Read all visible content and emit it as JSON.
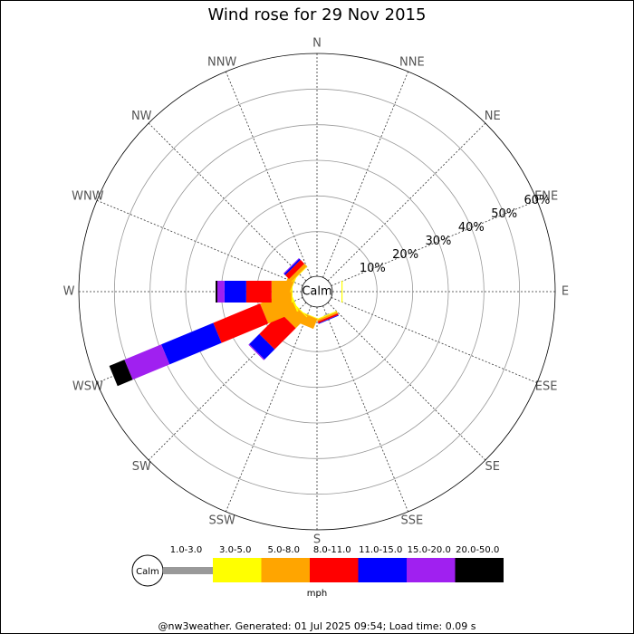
{
  "chart_data": {
    "type": "windrose",
    "title": "Wind rose for 29 Nov 2015",
    "calm_label": "Calm",
    "unit_label": "mph",
    "footer": "@nw3weather. Generated: 01 Jul 2025 09:54; Load time: 0.09 s",
    "categories": [
      "N",
      "NNE",
      "NE",
      "ENE",
      "E",
      "ESE",
      "SE",
      "SSE",
      "S",
      "SSW",
      "SW",
      "WSW",
      "W",
      "WNW",
      "NW",
      "NNW"
    ],
    "rlim": [
      0,
      60
    ],
    "rticks": [
      {
        "value": 10,
        "label": "10%"
      },
      {
        "value": 20,
        "label": "20%"
      },
      {
        "value": 30,
        "label": "30%"
      },
      {
        "value": 40,
        "label": "40%"
      },
      {
        "value": 50,
        "label": "50%"
      },
      {
        "value": 60,
        "label": "60%"
      }
    ],
    "series": [
      {
        "name": "1.0-3.0",
        "color": "#999999",
        "values": [
          0,
          0,
          0,
          0,
          0,
          0,
          0,
          0.2,
          0,
          0,
          0,
          0,
          0,
          0,
          0,
          0
        ]
      },
      {
        "name": "3.0-5.0",
        "color": "#ffff00",
        "values": [
          0,
          0,
          0,
          0,
          0.3,
          0,
          0,
          0.3,
          0,
          0.2,
          0.3,
          0.5,
          0.3,
          0.2,
          0.2,
          0
        ]
      },
      {
        "name": "5.0-8.0",
        "color": "#ffa500",
        "values": [
          0,
          0,
          0,
          0,
          0,
          0,
          0,
          0.5,
          0,
          3,
          4.3,
          8.7,
          5.6,
          2,
          1,
          0
        ]
      },
      {
        "name": "8.0-11.0",
        "color": "#ff0000",
        "values": [
          0,
          0,
          0,
          0,
          0,
          0,
          0,
          0.5,
          0,
          0,
          8.4,
          14.2,
          7.1,
          0,
          1.5,
          0
        ]
      },
      {
        "name": "11.0-15.0",
        "color": "#0000ff",
        "values": [
          0,
          0,
          0,
          0,
          0,
          0,
          0,
          0.2,
          0,
          0,
          4,
          15.8,
          6.1,
          0,
          0.5,
          0
        ]
      },
      {
        "name": "15.0-20.0",
        "color": "#a020f0",
        "values": [
          0,
          0,
          0,
          0,
          0,
          0,
          0,
          0,
          0,
          0,
          0.3,
          11.2,
          2,
          0,
          0.2,
          0
        ]
      },
      {
        "name": "20.0-50.0",
        "color": "#000000",
        "values": [
          0,
          0,
          0,
          0,
          0,
          0,
          0,
          0,
          0,
          0,
          0,
          4.6,
          0.5,
          0,
          0,
          0
        ]
      }
    ]
  }
}
